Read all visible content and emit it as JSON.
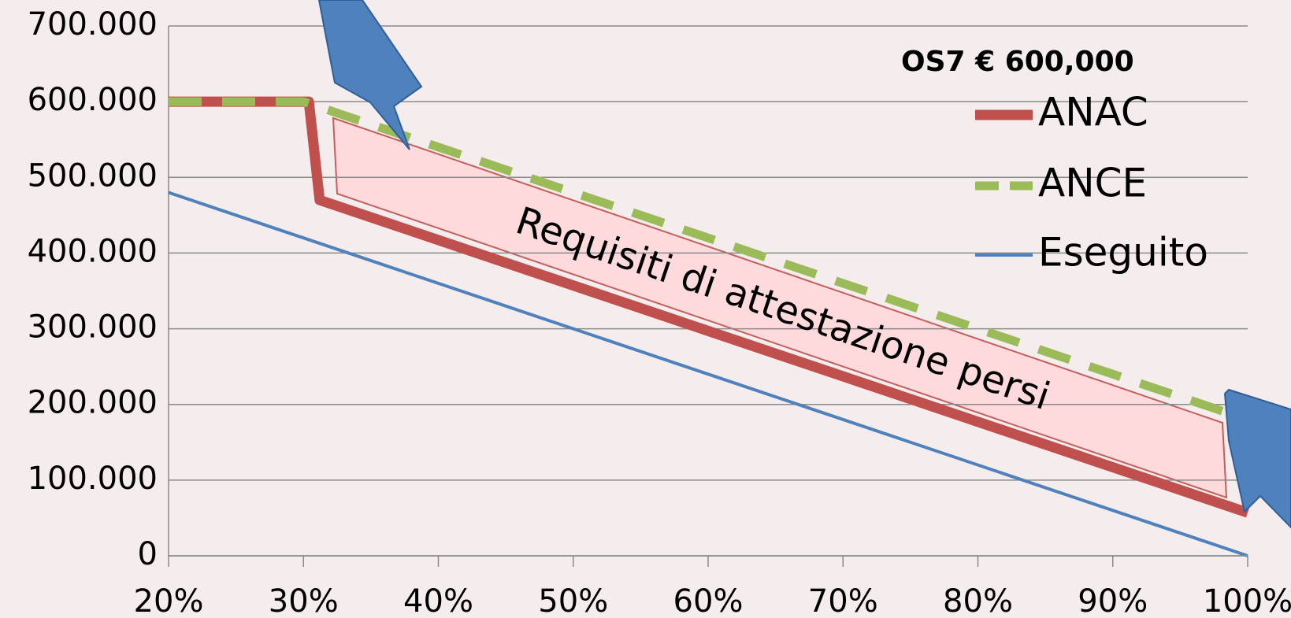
{
  "chart_data": {
    "type": "line",
    "legend_title": "OS7 € 600,000",
    "annotation": "Requisiti di attestazione persi",
    "series": [
      {
        "name": "ANAC",
        "color": "#c0504d",
        "x": [
          20,
          30.4,
          31.2,
          100
        ],
        "values": [
          600000,
          600000,
          470000,
          57000
        ]
      },
      {
        "name": "ANCE",
        "color": "#9bbb59",
        "dashed": true,
        "x": [
          20,
          30,
          100
        ],
        "values": [
          600000,
          600000,
          180000
        ]
      },
      {
        "name": "Eseguito",
        "color": "#4f81bd",
        "x": [
          20,
          100
        ],
        "values": [
          480000,
          0
        ]
      }
    ],
    "xlim": [
      20,
      100
    ],
    "xticks": [
      {
        "value": 20,
        "label": "20%"
      },
      {
        "value": 30,
        "label": "30%"
      },
      {
        "value": 40,
        "label": "40%"
      },
      {
        "value": 50,
        "label": "50%"
      },
      {
        "value": 60,
        "label": "60%"
      },
      {
        "value": 70,
        "label": "70%"
      },
      {
        "value": 80,
        "label": "80%"
      },
      {
        "value": 90,
        "label": "90%"
      },
      {
        "value": 100,
        "label": "100%"
      }
    ],
    "ylim": [
      0,
      700000
    ],
    "yticks": [
      0,
      {
        "value": 100000,
        "label": "100.000"
      },
      {
        "value": 200000,
        "label": "200.000"
      },
      {
        "value": 300000,
        "label": "300.000"
      },
      {
        "value": 400000,
        "label": "400.000"
      },
      {
        "value": 500000,
        "label": "500.000"
      },
      {
        "value": 600000,
        "label": "600.000"
      },
      {
        "value": 700000,
        "label": "700.000"
      }
    ],
    "grid": true,
    "legend_position": "upper right"
  }
}
